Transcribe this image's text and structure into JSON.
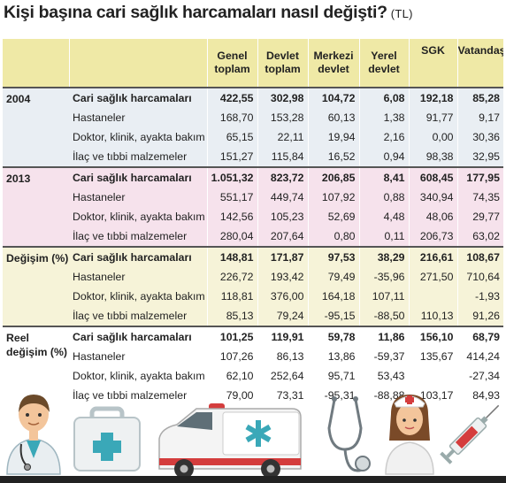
{
  "title": "Kişi başına cari sağlık harcamaları nasıl değişti?",
  "subtitle": "(TL)",
  "headers": [
    "Genel\ntoplam",
    "Devlet\ntoplam",
    "Merkezi\ndevlet",
    "Yerel\ndevlet",
    "SGK",
    "Vatandaş"
  ],
  "groups": [
    {
      "label": "2004",
      "rows": [
        {
          "label": "Cari sağlık harcamaları",
          "values": [
            "422,55",
            "302,98",
            "104,72",
            "6,08",
            "192,18",
            "85,28"
          ]
        },
        {
          "label": "Hastaneler",
          "values": [
            "168,70",
            "153,28",
            "60,13",
            "1,38",
            "91,77",
            "9,17"
          ]
        },
        {
          "label": "Doktor, klinik, ayakta bakım",
          "values": [
            "65,15",
            "22,11",
            "19,94",
            "2,16",
            "0,00",
            "30,36"
          ]
        },
        {
          "label": "İlaç ve tıbbi malzemeler",
          "values": [
            "151,27",
            "115,84",
            "16,52",
            "0,94",
            "98,38",
            "32,95"
          ]
        }
      ]
    },
    {
      "label": "2013",
      "rows": [
        {
          "label": "Cari sağlık harcamaları",
          "values": [
            "1.051,32",
            "823,72",
            "206,85",
            "8,41",
            "608,45",
            "177,95"
          ]
        },
        {
          "label": "Hastaneler",
          "values": [
            "551,17",
            "449,74",
            "107,92",
            "0,88",
            "340,94",
            "74,35"
          ]
        },
        {
          "label": "Doktor, klinik, ayakta bakım",
          "values": [
            "142,56",
            "105,23",
            "52,69",
            "4,48",
            "48,06",
            "29,77"
          ]
        },
        {
          "label": "İlaç ve tıbbi malzemeler",
          "values": [
            "280,04",
            "207,64",
            "0,80",
            "0,11",
            "206,73",
            "63,02"
          ]
        }
      ]
    },
    {
      "label": "Değişim (%)",
      "rows": [
        {
          "label": "Cari sağlık harcamaları",
          "values": [
            "148,81",
            "171,87",
            "97,53",
            "38,29",
            "216,61",
            "108,67"
          ]
        },
        {
          "label": "Hastaneler",
          "values": [
            "226,72",
            "193,42",
            "79,49",
            "-35,96",
            "271,50",
            "710,64"
          ]
        },
        {
          "label": "Doktor, klinik, ayakta bakım",
          "values": [
            "118,81",
            "376,00",
            "164,18",
            "107,11",
            "",
            "-1,93"
          ]
        },
        {
          "label": "İlaç ve tıbbi malzemeler",
          "values": [
            "85,13",
            "79,24",
            "-95,15",
            "-88,50",
            "110,13",
            "91,26"
          ]
        }
      ]
    },
    {
      "label": "Reel\ndeğişim (%)",
      "rows": [
        {
          "label": "Cari sağlık harcamaları",
          "values": [
            "101,25",
            "119,91",
            "59,78",
            "11,86",
            "156,10",
            "68,79"
          ]
        },
        {
          "label": "Hastaneler",
          "values": [
            "107,26",
            "86,13",
            "13,86",
            "-59,37",
            "135,67",
            "414,24"
          ]
        },
        {
          "label": "Doktor, klinik, ayakta bakım",
          "values": [
            "62,10",
            "252,64",
            "95,71",
            "53,43",
            "",
            "-27,34"
          ]
        },
        {
          "label": "İlaç ve tıbbi malzemeler",
          "values": [
            "79,00",
            "73,31",
            "-95,31",
            "-88,88",
            "103,17",
            "84,93"
          ]
        }
      ]
    }
  ],
  "icons": [
    "doctor-icon",
    "first-aid-kit-icon",
    "ambulance-icon",
    "stethoscope-icon",
    "nurse-icon",
    "syringe-icon"
  ],
  "colors": {
    "header_bg": "#efe9a6",
    "band_2004": "#e9eef3",
    "band_2013": "#f6e2ec",
    "band_degisim": "#f6f3d8",
    "band_reel": "#ffffff",
    "teal": "#3aa8b8",
    "red": "#d43d3d"
  }
}
